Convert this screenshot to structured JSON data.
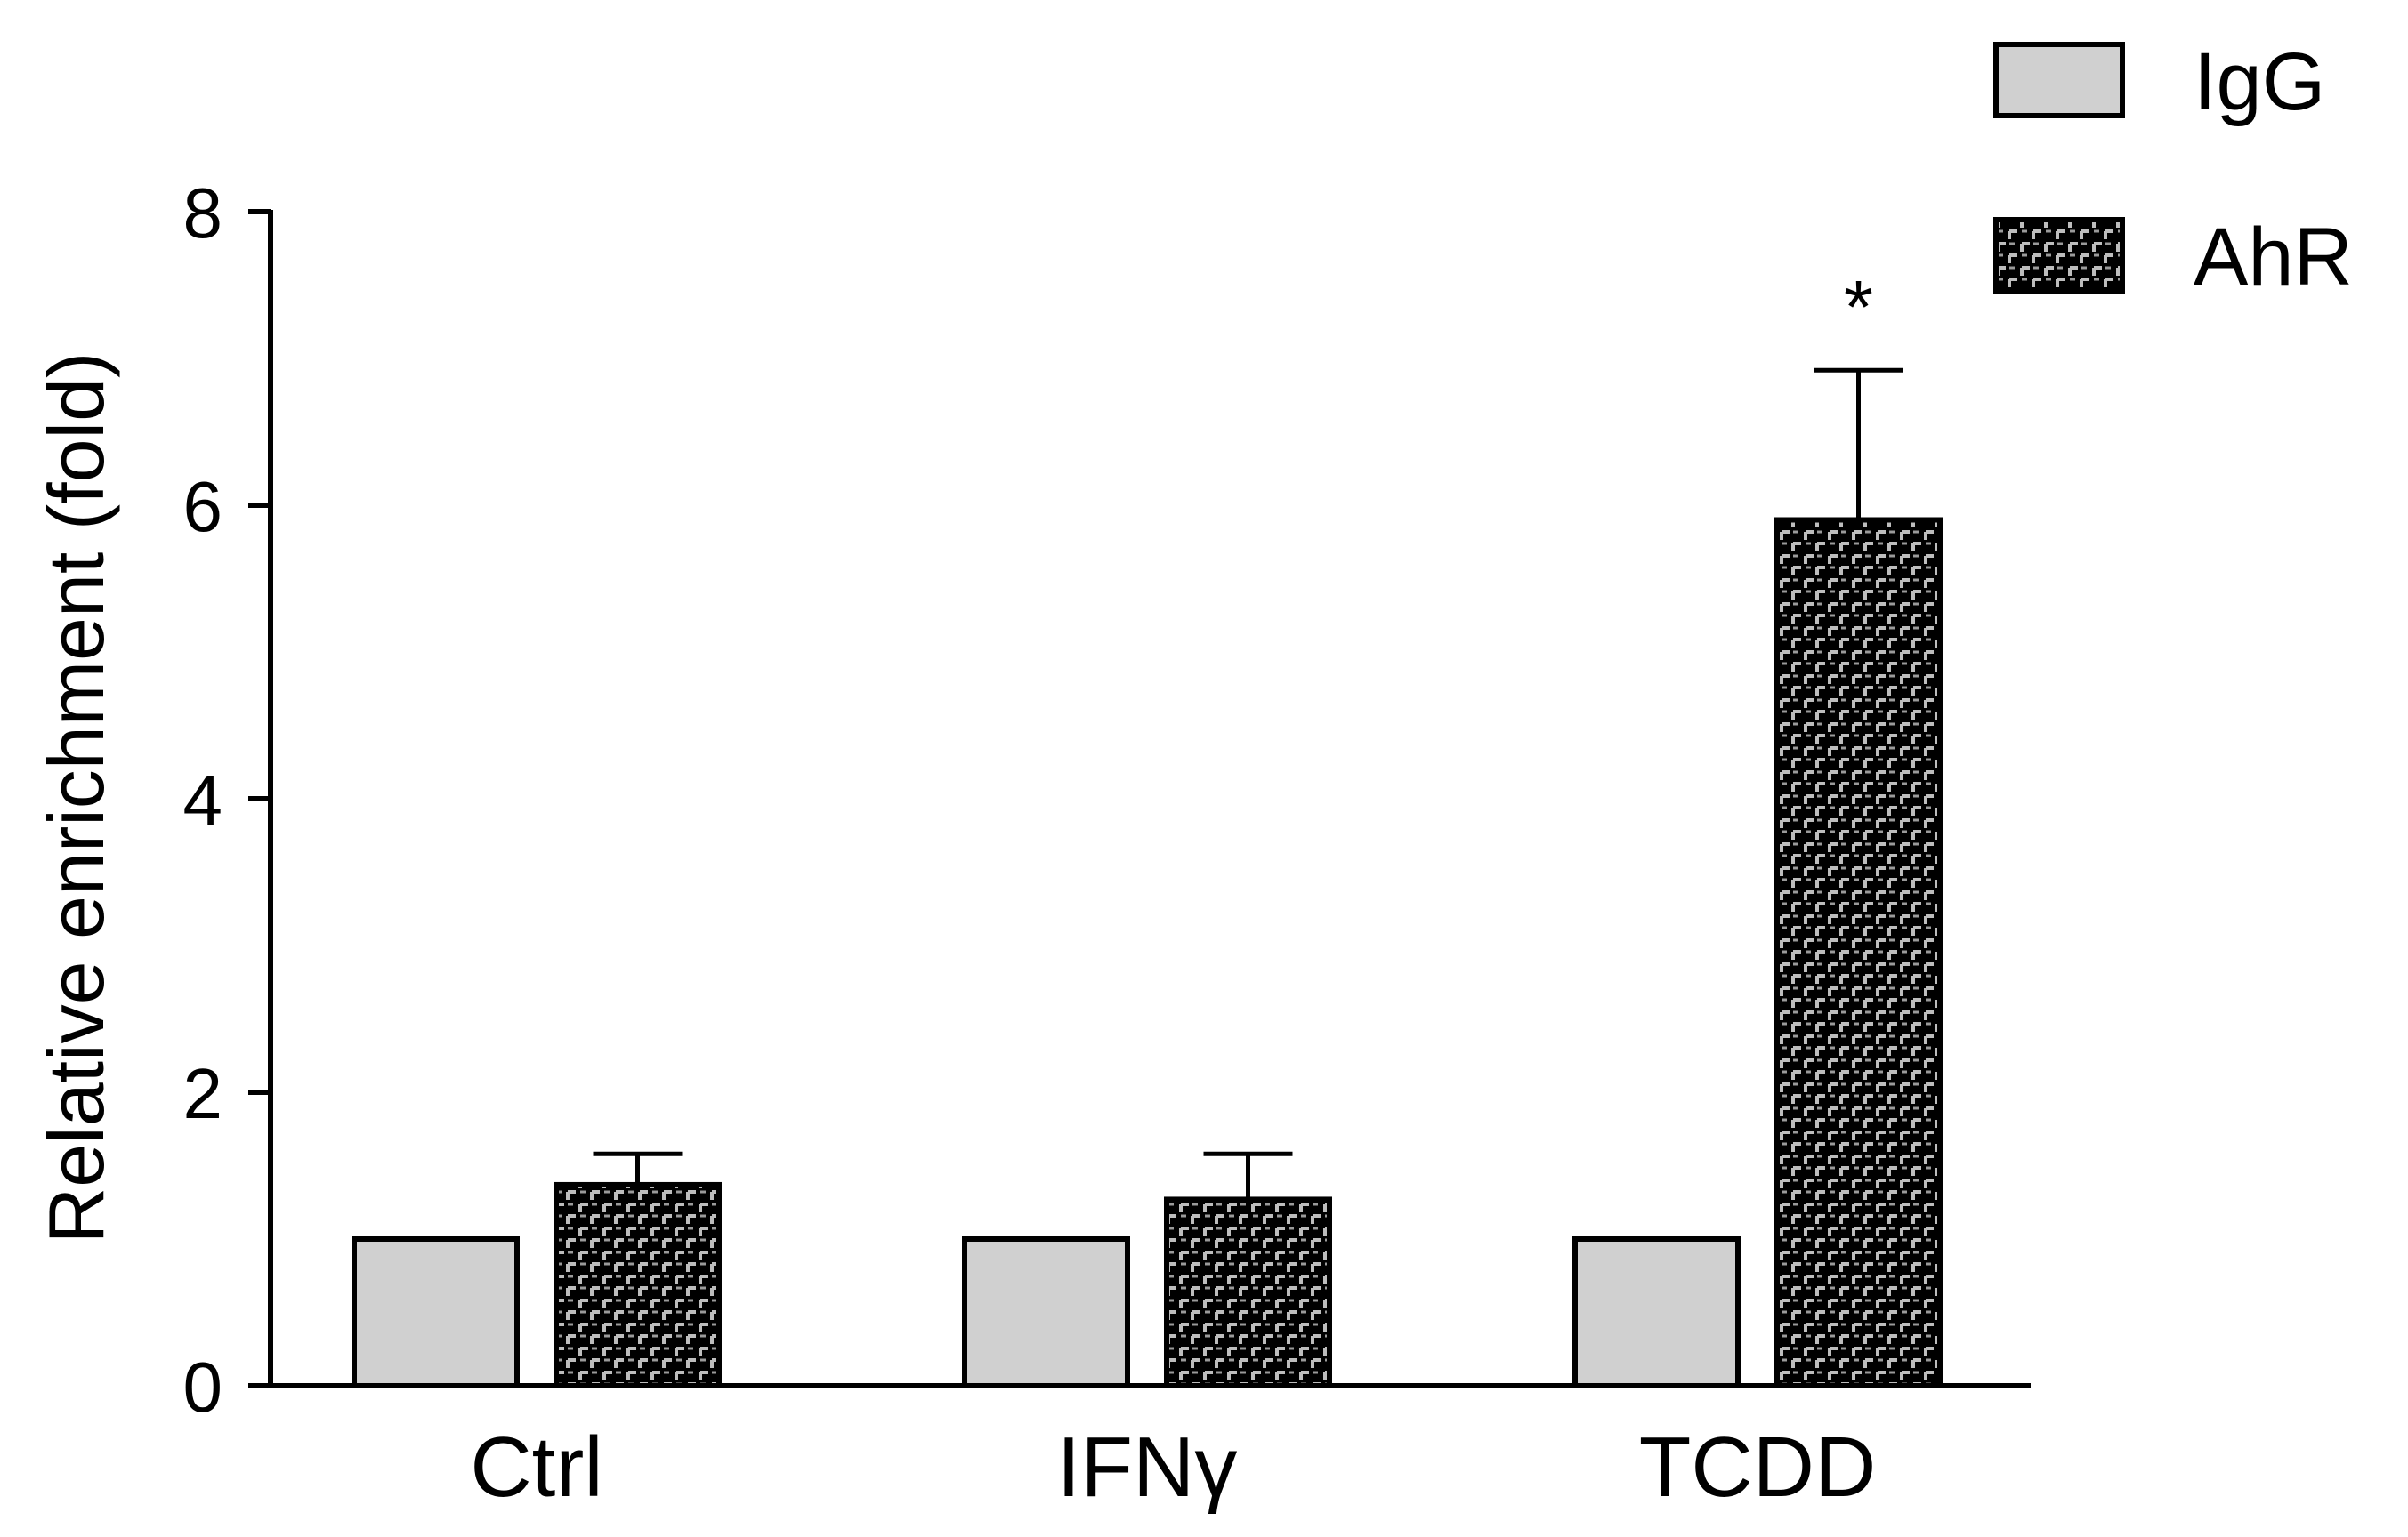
{
  "chart_data": {
    "type": "bar",
    "categories": [
      "Ctrl",
      "IFNγ",
      "TCDD"
    ],
    "ylabel": "Relative enrichment (fold)",
    "xlabel": "",
    "ylim": [
      0,
      8
    ],
    "yticks": [
      "0",
      "2",
      "4",
      "6",
      "8"
    ],
    "legend_position": "top-right",
    "series": [
      {
        "name": "IgG",
        "values": [
          1.0,
          1.0,
          1.0
        ],
        "errors": [
          0,
          0,
          0
        ],
        "color": "#d0d0d0",
        "pattern": "solid"
      },
      {
        "name": "AhR",
        "values": [
          1.37,
          1.27,
          5.9
        ],
        "errors": [
          0.21,
          0.31,
          1.02
        ],
        "color": "#000000",
        "pattern": "dashed-grid"
      }
    ],
    "annotations": [
      {
        "text": "*",
        "category": "TCDD",
        "series": "AhR"
      }
    ]
  }
}
